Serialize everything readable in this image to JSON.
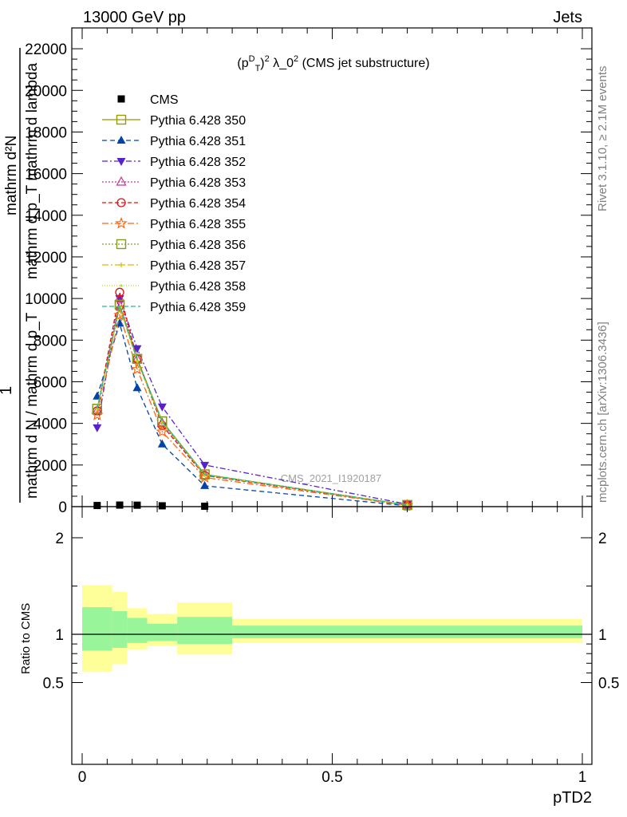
{
  "header": {
    "left": "13000 GeV pp",
    "right": "Jets",
    "plot_title": "(p_T^D)^2 λ_0^2 (CMS jet substructure)",
    "watermark": "CMS_2021_I1920187"
  },
  "side_text": {
    "rivet": "Rivet 3.1.10, ≥ 2.1M events",
    "mcplots": "mcplots.cern.ch [arXiv:1306.3436]"
  },
  "main_ylabel": {
    "numerator": "mathrm d²N",
    "denominator": "mathrm d p_T mathrm d lambda",
    "prefix_numerator": "1",
    "prefix_denominator": "mathrm d N / mathrm d p_T"
  },
  "ratio_ylabel": "Ratio to CMS",
  "xlabel": "pTD2",
  "colors": {
    "cms": "#000000",
    "band_inner": "#99f599",
    "band_outer": "#ffff99"
  },
  "chart_data": [
    {
      "type": "line",
      "panel": "main",
      "x": [
        0.03,
        0.075,
        0.11,
        0.16,
        0.245,
        0.65
      ],
      "ylim": [
        0,
        23000
      ],
      "xlim": [
        -0.02,
        1.0
      ],
      "y_ticks": [
        0,
        2000,
        4000,
        6000,
        8000,
        10000,
        12000,
        14000,
        16000,
        18000,
        20000,
        22000
      ],
      "y_tick_labels": [
        "0",
        "2000",
        "4000",
        "6000",
        "8000",
        "10000",
        "12000",
        "14000",
        "16000",
        "18000",
        "20000",
        "22000"
      ],
      "series": [
        {
          "name": "CMS",
          "color": "#000000",
          "marker": "filled-square",
          "dash": "none",
          "values": [
            55,
            75,
            70,
            40,
            20,
            2
          ]
        },
        {
          "name": "Pythia 6.428 350",
          "color": "#999900",
          "marker": "open-square",
          "dash": "solid",
          "values": [
            4700,
            9700,
            7100,
            4100,
            1550,
            80
          ]
        },
        {
          "name": "Pythia 6.428 351",
          "color": "#0044aa",
          "marker": "filled-triangle-up",
          "dash": "6,4",
          "values": [
            5300,
            8800,
            5700,
            3000,
            1000,
            40
          ]
        },
        {
          "name": "Pythia 6.428 352",
          "color": "#5522cc",
          "marker": "filled-triangle-down",
          "dash": "7,3,2,3",
          "values": [
            3800,
            10000,
            7600,
            4800,
            2000,
            120
          ]
        },
        {
          "name": "Pythia 6.428 353",
          "color": "#cc3399",
          "marker": "open-triangle-up",
          "dash": "2,2",
          "values": [
            4600,
            10000,
            7100,
            4000,
            1500,
            70
          ]
        },
        {
          "name": "Pythia 6.428 354",
          "color": "#dd1111",
          "marker": "open-circle",
          "dash": "5,3",
          "values": [
            4600,
            10300,
            7100,
            3900,
            1500,
            70
          ]
        },
        {
          "name": "Pythia 6.428 355",
          "color": "#ff6611",
          "marker": "open-star",
          "dash": "8,3,2,3",
          "values": [
            4400,
            9200,
            6600,
            3600,
            1400,
            60
          ]
        },
        {
          "name": "Pythia 6.428 356",
          "color": "#889922",
          "marker": "open-square",
          "dash": "2,2",
          "values": [
            4700,
            9700,
            7100,
            4100,
            1550,
            80
          ]
        },
        {
          "name": "Pythia 6.428 357",
          "color": "#ddbb00",
          "marker": "small-cross",
          "dash": "8,3,2,3",
          "values": [
            4700,
            9600,
            7000,
            4050,
            1530,
            80
          ]
        },
        {
          "name": "Pythia 6.428 358",
          "color": "#bbdd22",
          "marker": "small-dot",
          "dash": "1,2",
          "values": [
            4700,
            9600,
            7000,
            4050,
            1530,
            80
          ]
        },
        {
          "name": "Pythia 6.428 359",
          "color": "#22bb88",
          "marker": "none",
          "dash": "6,3",
          "values": [
            4700,
            9650,
            7050,
            4080,
            1540,
            80
          ]
        }
      ]
    },
    {
      "type": "area",
      "panel": "ratio",
      "ylim": [
        0.35,
        2.3
      ],
      "xlim": [
        -0.02,
        1.0
      ],
      "y_ticks": [
        0.5,
        1,
        2
      ],
      "y_tick_labels": [
        "0.5",
        "1",
        "2"
      ],
      "x_ticks": [
        0,
        0.5,
        1
      ],
      "x_tick_labels": [
        "0",
        "0.5",
        "1"
      ],
      "reference_line": 1,
      "bands": [
        {
          "x0": 0.0,
          "x1": 0.06,
          "inner": [
            0.83,
            1.28
          ],
          "outer": [
            0.61,
            1.51
          ]
        },
        {
          "x0": 0.06,
          "x1": 0.09,
          "inner": [
            0.86,
            1.24
          ],
          "outer": [
            0.69,
            1.44
          ]
        },
        {
          "x0": 0.09,
          "x1": 0.13,
          "inner": [
            0.91,
            1.17
          ],
          "outer": [
            0.84,
            1.27
          ]
        },
        {
          "x0": 0.13,
          "x1": 0.19,
          "inner": [
            0.93,
            1.11
          ],
          "outer": [
            0.88,
            1.21
          ]
        },
        {
          "x0": 0.19,
          "x1": 0.3,
          "inner": [
            0.9,
            1.18
          ],
          "outer": [
            0.79,
            1.33
          ]
        },
        {
          "x0": 0.3,
          "x1": 1.0,
          "inner": [
            0.96,
            1.09
          ],
          "outer": [
            0.91,
            1.16
          ]
        }
      ]
    }
  ]
}
